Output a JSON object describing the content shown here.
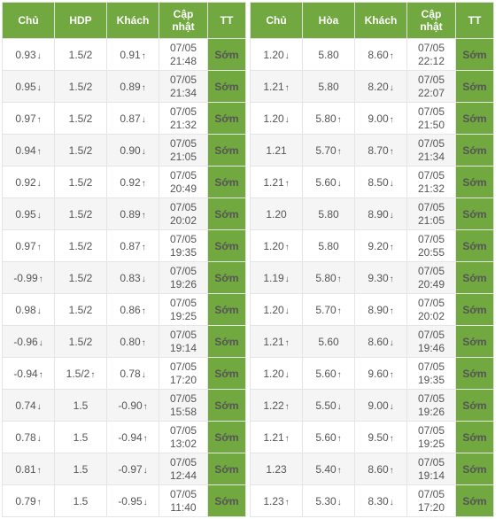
{
  "columns_left": [
    "Chủ",
    "HDP",
    "Khách",
    "Cập nhật",
    "TT"
  ],
  "columns_right": [
    "Chủ",
    "Hòa",
    "Khách",
    "Cập nhật",
    "TT"
  ],
  "tt_label": "Sớm",
  "colors": {
    "header_bg": "#72a840",
    "header_fg": "#ffffff",
    "up": "#299e37",
    "down": "#d9342a",
    "row_alt": "#f5f5f5",
    "border": "#e5e5e5"
  },
  "left": [
    {
      "chu": {
        "v": "0.93",
        "d": "down"
      },
      "hdp": {
        "v": "1.5/2",
        "d": null
      },
      "khach": {
        "v": "0.91",
        "d": "up"
      },
      "t1": "07/05",
      "t2": "21:48"
    },
    {
      "chu": {
        "v": "0.95",
        "d": "down"
      },
      "hdp": {
        "v": "1.5/2",
        "d": null
      },
      "khach": {
        "v": "0.89",
        "d": "up"
      },
      "t1": "07/05",
      "t2": "21:34"
    },
    {
      "chu": {
        "v": "0.97",
        "d": "up"
      },
      "hdp": {
        "v": "1.5/2",
        "d": null
      },
      "khach": {
        "v": "0.87",
        "d": "down"
      },
      "t1": "07/05",
      "t2": "21:32"
    },
    {
      "chu": {
        "v": "0.94",
        "d": "up"
      },
      "hdp": {
        "v": "1.5/2",
        "d": null
      },
      "khach": {
        "v": "0.90",
        "d": "down"
      },
      "t1": "07/05",
      "t2": "21:05"
    },
    {
      "chu": {
        "v": "0.92",
        "d": "down"
      },
      "hdp": {
        "v": "1.5/2",
        "d": null
      },
      "khach": {
        "v": "0.92",
        "d": "up"
      },
      "t1": "07/05",
      "t2": "20:49"
    },
    {
      "chu": {
        "v": "0.95",
        "d": "down"
      },
      "hdp": {
        "v": "1.5/2",
        "d": null
      },
      "khach": {
        "v": "0.89",
        "d": "up"
      },
      "t1": "07/05",
      "t2": "20:02"
    },
    {
      "chu": {
        "v": "0.97",
        "d": "up"
      },
      "hdp": {
        "v": "1.5/2",
        "d": null
      },
      "khach": {
        "v": "0.87",
        "d": "up"
      },
      "t1": "07/05",
      "t2": "19:35"
    },
    {
      "chu": {
        "v": "-0.99",
        "d": "up"
      },
      "hdp": {
        "v": "1.5/2",
        "d": null
      },
      "khach": {
        "v": "0.83",
        "d": "down"
      },
      "t1": "07/05",
      "t2": "19:26"
    },
    {
      "chu": {
        "v": "0.98",
        "d": "down"
      },
      "hdp": {
        "v": "1.5/2",
        "d": null
      },
      "khach": {
        "v": "0.86",
        "d": "up"
      },
      "t1": "07/05",
      "t2": "19:25"
    },
    {
      "chu": {
        "v": "-0.96",
        "d": "down"
      },
      "hdp": {
        "v": "1.5/2",
        "d": null
      },
      "khach": {
        "v": "0.80",
        "d": "up"
      },
      "t1": "07/05",
      "t2": "19:14"
    },
    {
      "chu": {
        "v": "-0.94",
        "d": "up"
      },
      "hdp": {
        "v": "1.5/2",
        "d": "up"
      },
      "khach": {
        "v": "0.78",
        "d": "down"
      },
      "t1": "07/05",
      "t2": "17:20"
    },
    {
      "chu": {
        "v": "0.74",
        "d": "down"
      },
      "hdp": {
        "v": "1.5",
        "d": null
      },
      "khach": {
        "v": "-0.90",
        "d": "up"
      },
      "t1": "07/05",
      "t2": "15:58"
    },
    {
      "chu": {
        "v": "0.78",
        "d": "down"
      },
      "hdp": {
        "v": "1.5",
        "d": null
      },
      "khach": {
        "v": "-0.94",
        "d": "up"
      },
      "t1": "07/05",
      "t2": "13:02"
    },
    {
      "chu": {
        "v": "0.81",
        "d": "up"
      },
      "hdp": {
        "v": "1.5",
        "d": null
      },
      "khach": {
        "v": "-0.97",
        "d": "down"
      },
      "t1": "07/05",
      "t2": "12:44"
    },
    {
      "chu": {
        "v": "0.79",
        "d": "up"
      },
      "hdp": {
        "v": "1.5",
        "d": null
      },
      "khach": {
        "v": "-0.95",
        "d": "down"
      },
      "t1": "07/05",
      "t2": "11:40"
    }
  ],
  "right": [
    {
      "chu": {
        "v": "1.20",
        "d": "down"
      },
      "hoa": {
        "v": "5.80",
        "d": null
      },
      "khach": {
        "v": "8.60",
        "d": "up"
      },
      "t1": "07/05",
      "t2": "22:12"
    },
    {
      "chu": {
        "v": "1.21",
        "d": "up"
      },
      "hoa": {
        "v": "5.80",
        "d": null
      },
      "khach": {
        "v": "8.20",
        "d": "down"
      },
      "t1": "07/05",
      "t2": "22:07"
    },
    {
      "chu": {
        "v": "1.20",
        "d": "down"
      },
      "hoa": {
        "v": "5.80",
        "d": "up"
      },
      "khach": {
        "v": "9.00",
        "d": "up"
      },
      "t1": "07/05",
      "t2": "21:50"
    },
    {
      "chu": {
        "v": "1.21",
        "d": null
      },
      "hoa": {
        "v": "5.70",
        "d": "up"
      },
      "khach": {
        "v": "8.70",
        "d": "up"
      },
      "t1": "07/05",
      "t2": "21:34"
    },
    {
      "chu": {
        "v": "1.21",
        "d": "up"
      },
      "hoa": {
        "v": "5.60",
        "d": "down"
      },
      "khach": {
        "v": "8.50",
        "d": "down"
      },
      "t1": "07/05",
      "t2": "21:32"
    },
    {
      "chu": {
        "v": "1.20",
        "d": null
      },
      "hoa": {
        "v": "5.80",
        "d": null
      },
      "khach": {
        "v": "8.90",
        "d": "down"
      },
      "t1": "07/05",
      "t2": "21:05"
    },
    {
      "chu": {
        "v": "1.20",
        "d": "up"
      },
      "hoa": {
        "v": "5.80",
        "d": null
      },
      "khach": {
        "v": "9.20",
        "d": "up"
      },
      "t1": "07/05",
      "t2": "20:55"
    },
    {
      "chu": {
        "v": "1.19",
        "d": "down"
      },
      "hoa": {
        "v": "5.80",
        "d": "up"
      },
      "khach": {
        "v": "9.30",
        "d": "up"
      },
      "t1": "07/05",
      "t2": "20:49"
    },
    {
      "chu": {
        "v": "1.20",
        "d": "down"
      },
      "hoa": {
        "v": "5.70",
        "d": "up"
      },
      "khach": {
        "v": "8.90",
        "d": "up"
      },
      "t1": "07/05",
      "t2": "20:02"
    },
    {
      "chu": {
        "v": "1.21",
        "d": "up"
      },
      "hoa": {
        "v": "5.60",
        "d": null
      },
      "khach": {
        "v": "8.60",
        "d": "down"
      },
      "t1": "07/05",
      "t2": "19:46"
    },
    {
      "chu": {
        "v": "1.20",
        "d": "down"
      },
      "hoa": {
        "v": "5.60",
        "d": "up"
      },
      "khach": {
        "v": "9.60",
        "d": "up"
      },
      "t1": "07/05",
      "t2": "19:35"
    },
    {
      "chu": {
        "v": "1.22",
        "d": "up"
      },
      "hoa": {
        "v": "5.50",
        "d": "down"
      },
      "khach": {
        "v": "9.00",
        "d": "down"
      },
      "t1": "07/05",
      "t2": "19:26"
    },
    {
      "chu": {
        "v": "1.21",
        "d": "up"
      },
      "hoa": {
        "v": "5.60",
        "d": "up"
      },
      "khach": {
        "v": "9.50",
        "d": "up"
      },
      "t1": "07/05",
      "t2": "19:25"
    },
    {
      "chu": {
        "v": "1.23",
        "d": null
      },
      "hoa": {
        "v": "5.40",
        "d": "up"
      },
      "khach": {
        "v": "8.60",
        "d": "up"
      },
      "t1": "07/05",
      "t2": "19:14"
    },
    {
      "chu": {
        "v": "1.23",
        "d": "up"
      },
      "hoa": {
        "v": "5.30",
        "d": "down"
      },
      "khach": {
        "v": "8.30",
        "d": "down"
      },
      "t1": "07/05",
      "t2": "17:20"
    }
  ]
}
